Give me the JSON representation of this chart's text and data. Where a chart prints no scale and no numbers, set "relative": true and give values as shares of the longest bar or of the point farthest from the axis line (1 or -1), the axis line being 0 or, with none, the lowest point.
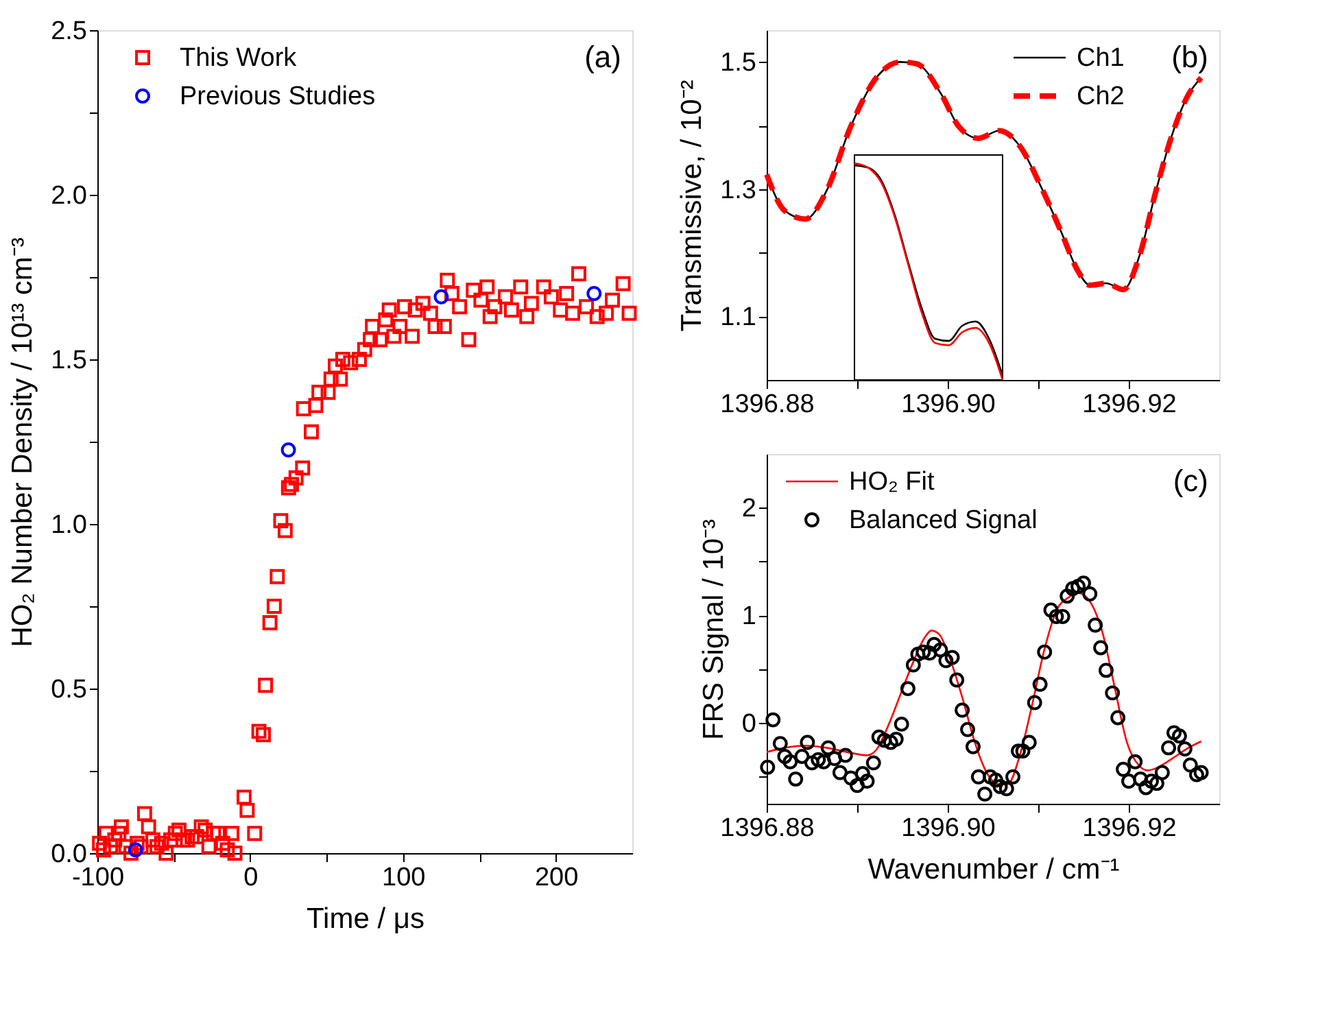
{
  "chart_data": [
    {
      "type": "scatter",
      "xlabel": "Time / μs",
      "ylabel": "HO₂ Number Density  /  10¹³ cm⁻³",
      "annotations": [
        "(a)"
      ],
      "xlim": [
        -100,
        250
      ],
      "ylim": [
        0,
        2.5
      ],
      "xticks": [
        -100,
        {
          "value": -50,
          "label": null
        },
        0,
        {
          "value": 50,
          "label": null
        },
        100,
        {
          "value": 150,
          "label": null
        },
        200
      ],
      "yticks": [
        {
          "value": 0,
          "label": "0.0"
        },
        {
          "value": 0.25,
          "label": null
        },
        {
          "value": 0.5,
          "label": "0.5"
        },
        {
          "value": 0.75,
          "label": null
        },
        {
          "value": 1,
          "label": "1.0"
        },
        {
          "value": 1.25,
          "label": null
        },
        {
          "value": 1.5,
          "label": "1.5"
        },
        {
          "value": 1.75,
          "label": null
        },
        {
          "value": 2,
          "label": "2.0"
        },
        {
          "value": 2.25,
          "label": null
        },
        {
          "value": 2.5,
          "label": "2.5"
        }
      ],
      "legend": "top left",
      "grid": false,
      "series": [
        {
          "name": "This Work",
          "color": "#ff0000",
          "marker": "square",
          "x": [
            -98.6,
            -96,
            -94.3,
            -91.4,
            -88.6,
            -86,
            -84.3,
            -81.4,
            -78,
            -74,
            -71.4,
            -69.1,
            -66.5,
            -63.7,
            -61,
            -58,
            -55,
            -52,
            -49,
            -46.6,
            -44,
            -41,
            -38,
            -35,
            -32,
            -29.5,
            -27,
            -24,
            -21,
            -18,
            -15,
            -12,
            -10,
            -4,
            -2,
            2.9,
            5.7,
            8.6,
            10,
            12.9,
            15.7,
            17.7,
            20,
            22.9,
            25.1,
            27,
            30,
            34.3,
            40,
            34.9,
            42.9,
            45,
            51,
            52.9,
            55.7,
            59,
            60.6,
            65.7,
            71.4,
            74.9,
            78.6,
            80,
            85,
            88.6,
            91,
            94,
            98,
            101,
            106,
            108,
            113,
            118,
            121,
            127,
            129,
            132,
            137,
            143,
            146,
            151,
            155,
            157,
            160,
            167,
            171,
            177,
            181,
            184,
            192,
            197,
            203,
            207,
            211,
            215,
            220,
            227,
            233,
            237,
            244,
            248
          ],
          "values": [
            0.03,
            0.01,
            0.06,
            0.02,
            0.04,
            0.06,
            0.08,
            0.02,
            0.0,
            0.03,
            0.02,
            0.12,
            0.08,
            0.04,
            0.02,
            0.03,
            0.0,
            0.04,
            0.06,
            0.07,
            0.04,
            0.04,
            0.05,
            0.05,
            0.08,
            0.07,
            0.02,
            0.06,
            0.06,
            0.03,
            0.01,
            0.06,
            0.0,
            0.17,
            0.13,
            0.06,
            0.37,
            0.36,
            0.51,
            0.7,
            0.75,
            0.84,
            1.01,
            0.98,
            1.11,
            1.12,
            1.14,
            1.17,
            1.28,
            1.35,
            1.36,
            1.4,
            1.4,
            1.44,
            1.48,
            1.44,
            1.5,
            1.49,
            1.5,
            1.53,
            1.56,
            1.6,
            1.56,
            1.62,
            1.65,
            1.57,
            1.6,
            1.66,
            1.57,
            1.65,
            1.67,
            1.64,
            1.6,
            1.6,
            1.74,
            1.7,
            1.66,
            1.56,
            1.71,
            1.68,
            1.72,
            1.63,
            1.66,
            1.69,
            1.65,
            1.72,
            1.63,
            1.67,
            1.72,
            1.69,
            1.65,
            1.7,
            1.64,
            1.76,
            1.66,
            1.63,
            1.64,
            1.68,
            1.73,
            1.64
          ]
        },
        {
          "name": "Previous Studies",
          "color": "#0000ff",
          "marker": "circle",
          "x": [
            -75,
            25,
            125,
            225
          ],
          "values": [
            0.01,
            1.225,
            1.69,
            1.7
          ]
        }
      ]
    },
    {
      "type": "line",
      "ylabel": "Transmissive, / 10⁻²",
      "annotations": [
        "(b)"
      ],
      "xlim": [
        1396.88,
        1396.93
      ],
      "ylim": [
        1.0,
        1.55
      ],
      "xticks": [
        {
          "value": 1396.88,
          "label": "1396.88"
        },
        {
          "value": 1396.89,
          "label": null
        },
        {
          "value": 1396.9,
          "label": "1396.90"
        },
        {
          "value": 1396.91,
          "label": null
        },
        {
          "value": 1396.92,
          "label": "1396.92"
        }
      ],
      "yticks": [
        1.1,
        {
          "value": 1.2,
          "label": null
        },
        1.3,
        {
          "value": 1.4,
          "label": null
        },
        1.5
      ],
      "legend": "top right",
      "grid": false,
      "x": [
        1396.88,
        1396.882,
        1396.8843,
        1396.8866,
        1396.8893,
        1396.8921,
        1396.8948,
        1396.8966,
        1396.8993,
        1396.9012,
        1396.9034,
        1396.9057,
        1396.908,
        1396.9103,
        1396.9125,
        1396.9144,
        1396.9157,
        1396.9175,
        1396.9194,
        1396.9212,
        1396.923,
        1396.9248,
        1396.9266,
        1396.928
      ],
      "series": [
        {
          "name": "Ch1",
          "color": "#000000",
          "line_style": "solid",
          "values": [
            1.323,
            1.266,
            1.253,
            1.297,
            1.399,
            1.475,
            1.5,
            1.497,
            1.449,
            1.399,
            1.38,
            1.392,
            1.367,
            1.304,
            1.234,
            1.171,
            1.149,
            1.152,
            1.142,
            1.196,
            1.297,
            1.386,
            1.449,
            1.475
          ]
        },
        {
          "name": "Ch2",
          "color": "#ff0000",
          "line_style": "dashed",
          "values": [
            1.323,
            1.266,
            1.253,
            1.297,
            1.399,
            1.475,
            1.5,
            1.497,
            1.449,
            1.399,
            1.38,
            1.392,
            1.367,
            1.304,
            1.234,
            1.171,
            1.149,
            1.152,
            1.142,
            1.196,
            1.297,
            1.386,
            1.449,
            1.475
          ]
        }
      ]
    },
    {
      "type": "line",
      "relative": true,
      "categories": [
        null,
        null,
        null,
        null,
        null,
        null,
        null,
        null,
        null,
        null,
        null,
        null
      ],
      "series": [
        {
          "color": "#000000",
          "values": [
            0.99,
            0.98,
            0.92,
            0.76,
            0.54,
            0.33,
            0.19,
            0.18,
            0.25,
            0.27,
            0.19,
            0.02
          ]
        },
        {
          "color": "#ff0000",
          "values": [
            1.0,
            0.98,
            0.91,
            0.75,
            0.53,
            0.31,
            0.17,
            0.16,
            0.22,
            0.24,
            0.17,
            0.0
          ]
        }
      ]
    },
    {
      "type": "line",
      "xlabel": "Wavenumber / cm⁻¹",
      "ylabel": "FRS Signal / 10⁻³",
      "annotations": [
        "(c)"
      ],
      "xlim": [
        1396.88,
        1396.93
      ],
      "ylim": [
        -0.75,
        2.5
      ],
      "xticks": [
        {
          "value": 1396.88,
          "label": "1396.88"
        },
        {
          "value": 1396.89,
          "label": null
        },
        {
          "value": 1396.9,
          "label": "1396.90"
        },
        {
          "value": 1396.91,
          "label": null
        },
        {
          "value": 1396.92,
          "label": "1396.92"
        }
      ],
      "yticks": [
        {
          "value": -0.5,
          "label": null
        },
        0,
        {
          "value": 0.5,
          "label": null
        },
        1,
        {
          "value": 1.5,
          "label": null
        },
        2
      ],
      "legend": "top left",
      "grid": false,
      "series": [
        {
          "name": "HO₂ Fit",
          "type": "line",
          "color": "#ff0000",
          "x": [
            1396.88,
            1396.882,
            1396.8843,
            1396.8866,
            1396.8889,
            1396.8911,
            1396.8921,
            1396.8934,
            1396.8948,
            1396.8962,
            1396.8975,
            1396.8982,
            1396.8991,
            1396.9002,
            1396.9016,
            1396.903,
            1396.9043,
            1396.9057,
            1396.9066,
            1396.908,
            1396.9093,
            1396.9107,
            1396.9121,
            1396.9134,
            1396.9144,
            1396.9157,
            1396.9171,
            1396.9184,
            1396.9198,
            1396.9212,
            1396.9221,
            1396.923,
            1396.9248,
            1396.9266,
            1396.928
          ],
          "values": [
            -0.27,
            -0.23,
            -0.21,
            -0.23,
            -0.27,
            -0.3,
            -0.25,
            -0.03,
            0.27,
            0.57,
            0.8,
            0.86,
            0.82,
            0.61,
            0.24,
            -0.18,
            -0.46,
            -0.57,
            -0.57,
            -0.29,
            0.16,
            0.69,
            1.06,
            1.17,
            1.21,
            1.13,
            0.84,
            0.35,
            -0.18,
            -0.4,
            -0.44,
            -0.42,
            -0.33,
            -0.23,
            -0.17
          ]
        },
        {
          "name": "Balanced Signal",
          "type": "scatter",
          "marker": "circle",
          "color": "#000000",
          "x": [
            1396.8801,
            1396.8807,
            1396.8815,
            1396.882,
            1396.8826,
            1396.8832,
            1396.8839,
            1396.8845,
            1396.885,
            1396.8857,
            1396.8863,
            1396.8868,
            1396.8875,
            1396.8881,
            1396.8887,
            1396.8893,
            1396.89,
            1396.8906,
            1396.8911,
            1396.8918,
            1396.8924,
            1396.893,
            1396.8937,
            1396.8943,
            1396.8949,
            1396.8956,
            1396.8962,
            1396.8967,
            1396.8973,
            1396.898,
            1396.8985,
            1396.8992,
            1396.8998,
            1396.9005,
            1396.901,
            1396.9016,
            1396.9022,
            1396.9028,
            1396.9034,
            1396.9041,
            1396.9047,
            1396.9053,
            1396.9058,
            1396.9065,
            1396.9072,
            1396.9078,
            1396.9083,
            1396.909,
            1396.9096,
            1396.9102,
            1396.9107,
            1396.9114,
            1396.912,
            1396.9127,
            1396.9132,
            1396.9138,
            1396.9144,
            1396.915,
            1396.9157,
            1396.9163,
            1396.9169,
            1396.9175,
            1396.9182,
            1396.9188,
            1396.9194,
            1396.92,
            1396.9207,
            1396.9213,
            1396.9219,
            1396.9225,
            1396.9231,
            1396.9237,
            1396.9244,
            1396.925,
            1396.9256,
            1396.9262,
            1396.9268,
            1396.9275,
            1396.928
          ],
          "values": [
            -0.41,
            0.03,
            -0.19,
            -0.31,
            -0.36,
            -0.52,
            -0.31,
            -0.18,
            -0.37,
            -0.34,
            -0.36,
            -0.23,
            -0.33,
            -0.46,
            -0.3,
            -0.51,
            -0.58,
            -0.47,
            -0.54,
            -0.37,
            -0.13,
            -0.16,
            -0.18,
            -0.15,
            -0.01,
            0.32,
            0.54,
            0.64,
            0.66,
            0.65,
            0.73,
            0.68,
            0.58,
            0.61,
            0.4,
            0.12,
            -0.06,
            -0.22,
            -0.5,
            -0.66,
            -0.5,
            -0.53,
            -0.59,
            -0.61,
            -0.5,
            -0.26,
            -0.26,
            -0.18,
            0.19,
            0.36,
            0.66,
            1.05,
            0.99,
            0.99,
            1.18,
            1.25,
            1.27,
            1.3,
            1.2,
            0.91,
            0.7,
            0.49,
            0.28,
            0.05,
            -0.43,
            -0.54,
            -0.36,
            -0.52,
            -0.6,
            -0.54,
            -0.56,
            -0.46,
            -0.23,
            -0.09,
            -0.12,
            -0.24,
            -0.39,
            -0.48,
            -0.46
          ]
        }
      ]
    }
  ]
}
